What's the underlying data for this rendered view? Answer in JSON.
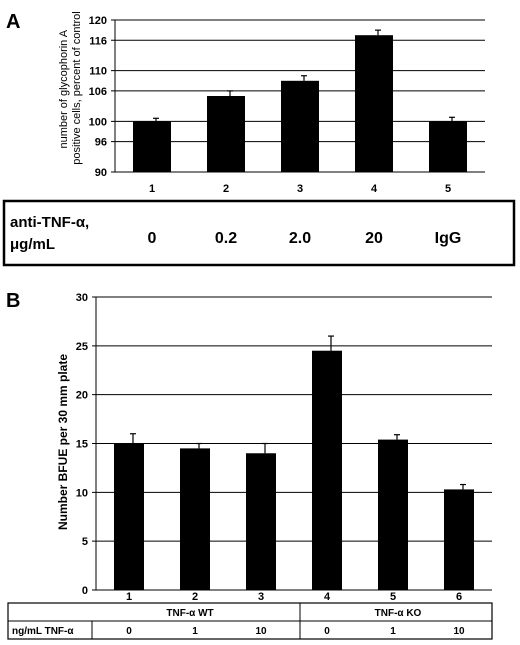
{
  "panels": {
    "a": {
      "letter": "A"
    },
    "b": {
      "letter": "B"
    }
  },
  "chart_data": [
    {
      "type": "bar",
      "panel": "A",
      "ylabel": "number of glycophorin A positive cells, percent of control",
      "ylabel_lines": [
        "number of glycophorin A",
        "positive cells, percent of control"
      ],
      "ylim": [
        90,
        120
      ],
      "yticks": [
        90,
        96,
        100,
        106,
        110,
        116,
        120
      ],
      "grid": true,
      "categories": [
        "1",
        "2",
        "3",
        "4",
        "5"
      ],
      "values": [
        100,
        105,
        108,
        117,
        100
      ],
      "errors": [
        0.6,
        1.0,
        1.0,
        1.0,
        0.8
      ],
      "condition_table": {
        "label_lines": [
          "anti-TNF-α,",
          "μg/mL"
        ],
        "values": [
          "0",
          "0.2",
          "2.0",
          "20",
          "IgG"
        ]
      }
    },
    {
      "type": "bar",
      "panel": "B",
      "ylabel": "Number BFUE per 30 mm plate",
      "ylim": [
        0,
        30
      ],
      "yticks": [
        0,
        5,
        10,
        15,
        20,
        25,
        30
      ],
      "grid": true,
      "categories": [
        "1",
        "2",
        "3",
        "4",
        "5",
        "6"
      ],
      "values": [
        15.0,
        14.5,
        14.0,
        24.5,
        15.4,
        10.3
      ],
      "errors": [
        1.0,
        0.5,
        1.0,
        1.5,
        0.5,
        0.5
      ],
      "condition_table": {
        "groups": [
          "TNF-α WT",
          "TNF-α KO"
        ],
        "row_label": "ng/mL TNF-α",
        "values": [
          "0",
          "1",
          "10",
          "0",
          "1",
          "10"
        ]
      }
    }
  ]
}
